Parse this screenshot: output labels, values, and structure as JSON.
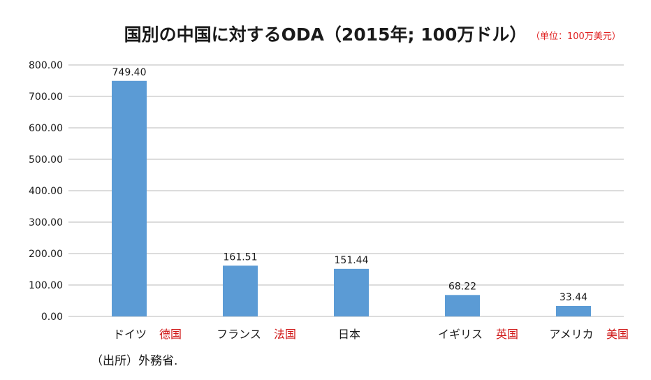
{
  "chart_data": {
    "type": "bar",
    "title": "国別の中国に対するODA（2015年; 100万ドル）",
    "unit_note": "（单位：100万美元）",
    "categories": [
      "ドイツ",
      "フランス",
      "日本",
      "イギリス",
      "アメリカ"
    ],
    "category_annotations": [
      "德国",
      "法国",
      "",
      "英国",
      "美国"
    ],
    "values": [
      749.4,
      161.51,
      151.44,
      68.22,
      33.44
    ],
    "value_labels": [
      "749.40",
      "161.51",
      "151.44",
      "68.22",
      "33.44"
    ],
    "ylim": [
      0,
      800
    ],
    "yticks": [
      "0.00",
      "100.00",
      "200.00",
      "300.00",
      "400.00",
      "500.00",
      "600.00",
      "700.00",
      "800.00"
    ],
    "grid": true,
    "legend": "none",
    "bar_color": "#5b9bd5",
    "annotation_color": "#d01818",
    "source": "（出所）外務省."
  }
}
